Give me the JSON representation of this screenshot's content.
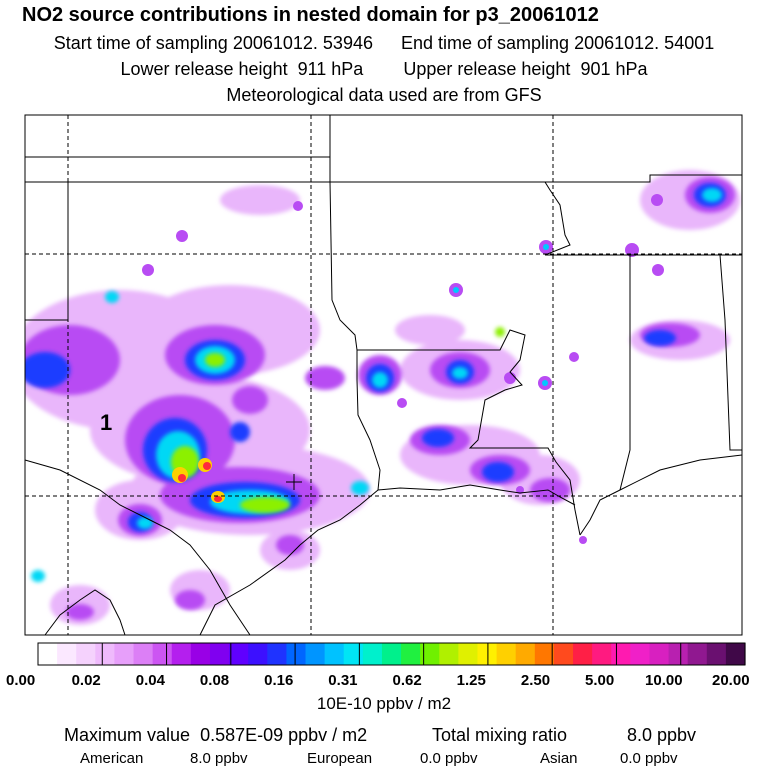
{
  "title": "NO2 source contributions in nested domain for p3_20061012",
  "start_label": "Start time of sampling",
  "start_value": "20061012. 53946",
  "end_label": "End time of sampling",
  "end_value": "20061012. 54001",
  "lower_label": "Lower release height",
  "lower_value": "911 hPa",
  "upper_label": "Upper release height",
  "upper_value": "901 hPa",
  "met_line": "Meteorological data used are from GFS",
  "map": {
    "marker_label": "1"
  },
  "colorbar": {
    "ticks": [
      "0.00",
      "0.02",
      "0.04",
      "0.08",
      "0.16",
      "0.31",
      "0.62",
      "1.25",
      "2.50",
      "5.00",
      "10.00",
      "20.00"
    ],
    "colors": [
      "#ffffff",
      "#fbe8ff",
      "#f5d2fd",
      "#efbafc",
      "#e79ffa",
      "#dc7ff6",
      "#cc55f2",
      "#b41fee",
      "#9900e6",
      "#8000f0",
      "#6000ff",
      "#3c10ff",
      "#1f33ff",
      "#0066ff",
      "#0095ff",
      "#00c2ff",
      "#00e5f5",
      "#00f0cc",
      "#00f08c",
      "#20f040",
      "#70f000",
      "#b0f000",
      "#e0f000",
      "#fff000",
      "#ffd000",
      "#ffaa00",
      "#ff7700",
      "#ff4a1e",
      "#ff1f46",
      "#ff1a80",
      "#ff1ab0",
      "#f020c8",
      "#d820c0",
      "#b820b0",
      "#901890",
      "#6a1070",
      "#400848"
    ],
    "units": "10E-10 ppbv / m2"
  },
  "summary": {
    "max_label": "Maximum value",
    "max_value": "0.587E-09 ppbv / m2",
    "total_label": "Total mixing ratio",
    "total_value": "8.0 ppbv",
    "american_label": "American",
    "american_value": "8.0 ppbv",
    "european_label": "European",
    "european_value": "0.0 ppbv",
    "asian_label": "Asian",
    "asian_value": "0.0 ppbv"
  }
}
